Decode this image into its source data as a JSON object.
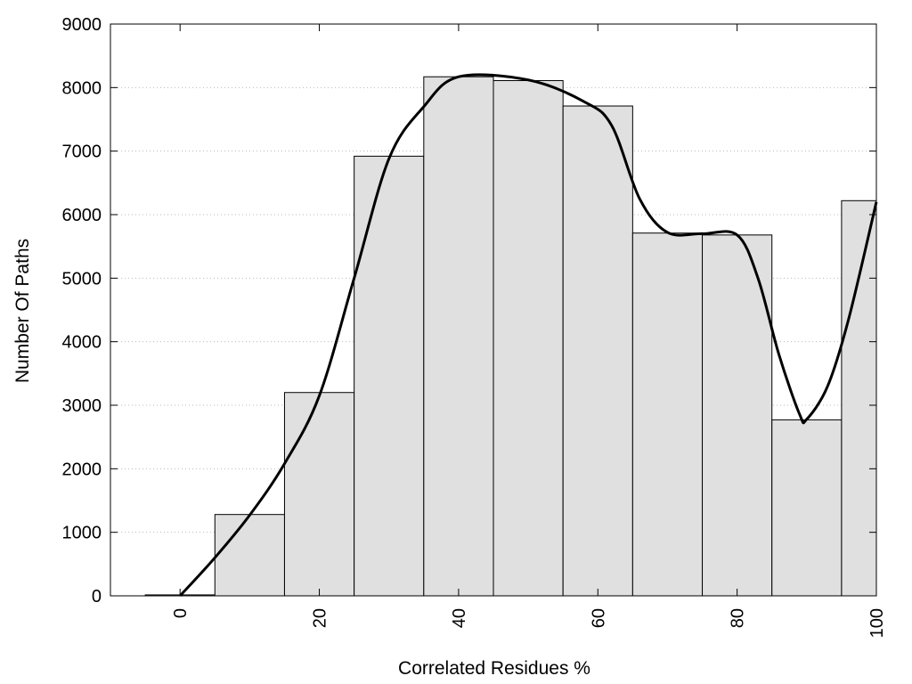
{
  "chart_data": {
    "type": "bar",
    "title": "",
    "xlabel": "Correlated Residues %",
    "ylabel": "Number Of Paths",
    "bins": [
      {
        "x": 0,
        "value": 15
      },
      {
        "x": 10,
        "value": 1280
      },
      {
        "x": 20,
        "value": 3200
      },
      {
        "x": 30,
        "value": 6920
      },
      {
        "x": 40,
        "value": 8170
      },
      {
        "x": 50,
        "value": 8110
      },
      {
        "x": 60,
        "value": 7710
      },
      {
        "x": 70,
        "value": 5710
      },
      {
        "x": 80,
        "value": 5680
      },
      {
        "x": 90,
        "value": 2770
      },
      {
        "x": 100,
        "value": 6220
      }
    ],
    "bin_width": 10,
    "curve": [
      {
        "x": 0,
        "y": 0
      },
      {
        "x": 5,
        "y": 600
      },
      {
        "x": 10,
        "y": 1270
      },
      {
        "x": 15,
        "y": 2080
      },
      {
        "x": 20,
        "y": 3150
      },
      {
        "x": 25,
        "y": 5000
      },
      {
        "x": 30,
        "y": 6880
      },
      {
        "x": 35,
        "y": 7700
      },
      {
        "x": 40,
        "y": 8170
      },
      {
        "x": 50,
        "y": 8120
      },
      {
        "x": 58,
        "y": 7780
      },
      {
        "x": 62,
        "y": 7400
      },
      {
        "x": 66,
        "y": 6250
      },
      {
        "x": 70,
        "y": 5720
      },
      {
        "x": 75,
        "y": 5700
      },
      {
        "x": 80,
        "y": 5680
      },
      {
        "x": 83,
        "y": 5000
      },
      {
        "x": 86,
        "y": 3800
      },
      {
        "x": 89,
        "y": 2850
      },
      {
        "x": 90,
        "y": 2780
      },
      {
        "x": 93,
        "y": 3300
      },
      {
        "x": 96,
        "y": 4350
      },
      {
        "x": 100,
        "y": 6200
      }
    ],
    "xlim": [
      -10,
      100
    ],
    "ylim": [
      0,
      9000
    ],
    "xticks": [
      0,
      20,
      40,
      60,
      80,
      100
    ],
    "yticks": [
      0,
      1000,
      2000,
      3000,
      4000,
      5000,
      6000,
      7000,
      8000,
      9000
    ],
    "grid": "horizontal-dotted",
    "bar_color": "#e0e0e0",
    "bar_edge_color": "#000000",
    "curve_color": "#000000"
  }
}
